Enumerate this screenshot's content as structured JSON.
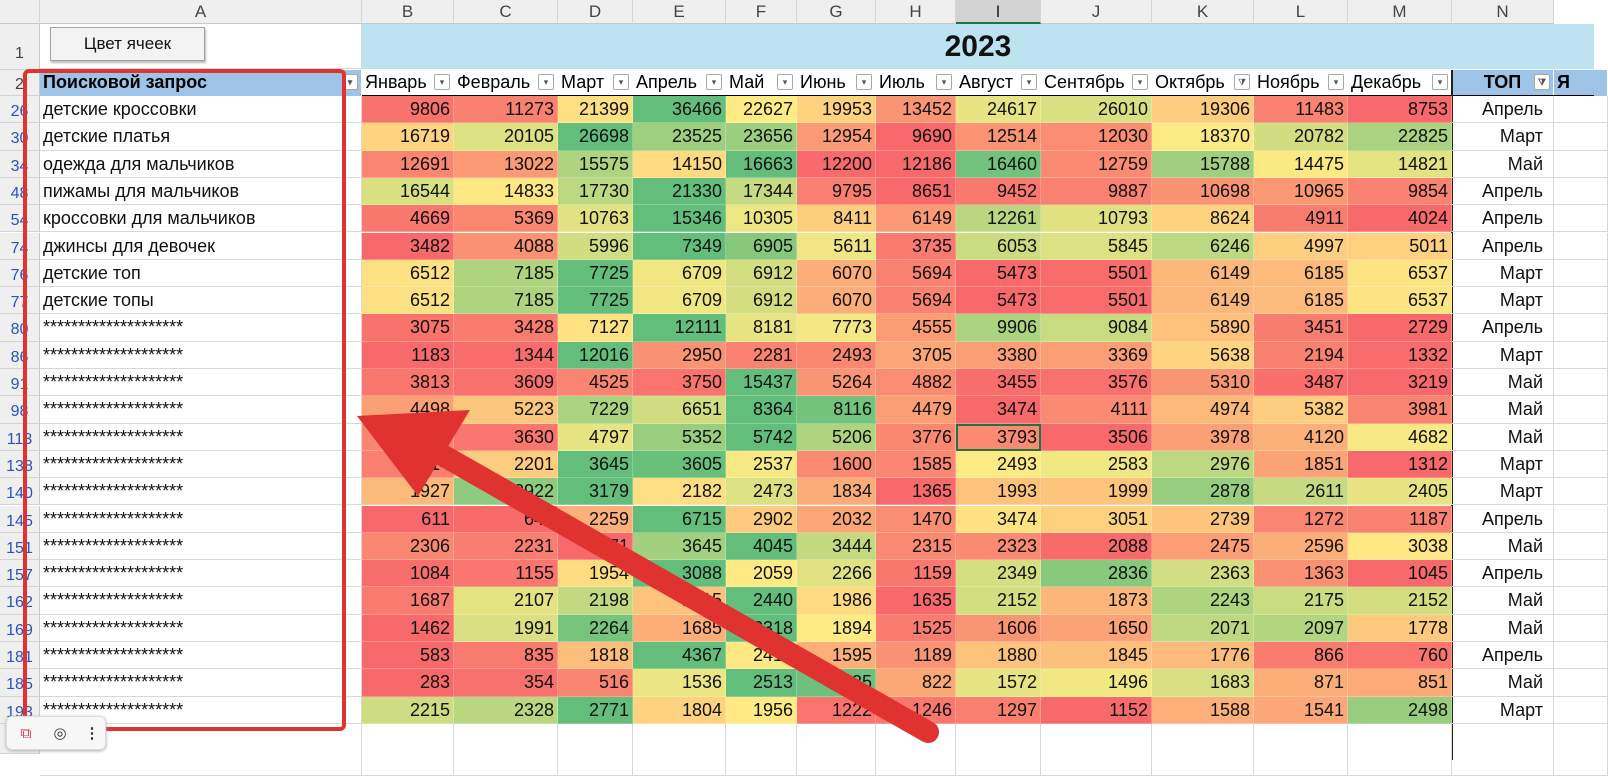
{
  "columns": [
    "A",
    "B",
    "C",
    "D",
    "E",
    "F",
    "G",
    "H",
    "I",
    "J",
    "K",
    "L",
    "M",
    "N"
  ],
  "selected_column": "I",
  "button": {
    "label": "Цвет ячеек"
  },
  "year": "2023",
  "header": {
    "query_label": "Поисковой запрос",
    "months": [
      "Январь",
      "Февраль",
      "Март",
      "Апрель",
      "Май",
      "Июнь",
      "Июль",
      "Август",
      "Сентябрь",
      "Октябрь",
      "Ноябрь",
      "Декабрь"
    ],
    "top_label": "ТОП",
    "extra_label": "Я"
  },
  "row_numbers_top": [
    "1",
    "2"
  ],
  "rows": [
    {
      "n": "26",
      "q": "детские кроссовки",
      "v": [
        9806,
        11273,
        21399,
        36466,
        22627,
        19953,
        13452,
        24617,
        26010,
        19306,
        11483,
        8753
      ],
      "top": "Апрель"
    },
    {
      "n": "30",
      "q": "детские платья",
      "v": [
        16719,
        20105,
        26698,
        23525,
        23656,
        12954,
        9690,
        12514,
        12030,
        18370,
        20782,
        22825
      ],
      "top": "Март"
    },
    {
      "n": "34",
      "q": "одежда для мальчиков",
      "v": [
        12691,
        13022,
        15575,
        14150,
        16663,
        12200,
        12186,
        16460,
        12759,
        15788,
        14475,
        14821
      ],
      "top": "Май"
    },
    {
      "n": "48",
      "q": "пижамы для мальчиков",
      "v": [
        16544,
        14833,
        17730,
        21330,
        17344,
        9795,
        8651,
        9452,
        9887,
        10698,
        10965,
        9854
      ],
      "top": "Апрель"
    },
    {
      "n": "54",
      "q": "кроссовки для мальчиков",
      "v": [
        4669,
        5369,
        10763,
        15346,
        10305,
        8411,
        6149,
        12261,
        10793,
        8624,
        4911,
        4024
      ],
      "top": "Апрель"
    },
    {
      "n": "74",
      "q": "джинсы для девочек",
      "v": [
        3482,
        4088,
        5996,
        7349,
        6905,
        5611,
        3735,
        6053,
        5845,
        6246,
        4997,
        5011
      ],
      "top": "Апрель"
    },
    {
      "n": "76",
      "q": "детские топ",
      "v": [
        6512,
        7185,
        7725,
        6709,
        6912,
        6070,
        5694,
        5473,
        5501,
        6149,
        6185,
        6537
      ],
      "top": "Март"
    },
    {
      "n": "77",
      "q": "детские топы",
      "v": [
        6512,
        7185,
        7725,
        6709,
        6912,
        6070,
        5694,
        5473,
        5501,
        6149,
        6185,
        6537
      ],
      "top": "Март"
    },
    {
      "n": "80",
      "q": "********************",
      "v": [
        3075,
        3428,
        7127,
        12111,
        8181,
        7773,
        4555,
        9906,
        9084,
        5890,
        3451,
        2729
      ],
      "top": "Апрель"
    },
    {
      "n": "86",
      "q": "********************",
      "v": [
        1183,
        1344,
        12016,
        2950,
        2281,
        2493,
        3705,
        3380,
        3369,
        5638,
        2194,
        1332
      ],
      "top": "Март"
    },
    {
      "n": "91",
      "q": "********************",
      "v": [
        3813,
        3609,
        4525,
        3750,
        15437,
        5264,
        4882,
        3455,
        3576,
        5310,
        3487,
        3219
      ],
      "top": "Май"
    },
    {
      "n": "98",
      "q": "********************",
      "v": [
        4498,
        5223,
        7229,
        6651,
        8364,
        8116,
        4479,
        3474,
        4111,
        4974,
        5382,
        3981
      ],
      "top": "Май"
    },
    {
      "n": "113",
      "q": "********************",
      "v": [
        3758,
        3630,
        4797,
        5352,
        5742,
        5206,
        3776,
        3793,
        3506,
        3978,
        4120,
        4682
      ],
      "top": "Май"
    },
    {
      "n": "138",
      "q": "********************",
      "v": [
        1514,
        2201,
        3645,
        3605,
        2537,
        1600,
        1585,
        2493,
        2583,
        2976,
        1851,
        1312
      ],
      "top": "Март"
    },
    {
      "n": "140",
      "q": "********************",
      "v": [
        1927,
        2922,
        3179,
        2182,
        2473,
        1834,
        1365,
        1993,
        1999,
        2878,
        2611,
        2405
      ],
      "top": "Март"
    },
    {
      "n": "145",
      "q": "********************",
      "v": [
        611,
        648,
        2259,
        6715,
        2902,
        2032,
        1470,
        3474,
        3051,
        2739,
        1272,
        1187
      ],
      "top": "Апрель"
    },
    {
      "n": "151",
      "q": "********************",
      "v": [
        2306,
        2231,
        2071,
        3645,
        4045,
        3444,
        2315,
        2323,
        2088,
        2475,
        2596,
        3038
      ],
      "top": "Май"
    },
    {
      "n": "157",
      "q": "********************",
      "v": [
        1084,
        1155,
        1954,
        3088,
        2059,
        2266,
        1159,
        2349,
        2836,
        2363,
        1363,
        1045
      ],
      "top": "Апрель"
    },
    {
      "n": "162",
      "q": "********************",
      "v": [
        1687,
        2107,
        2198,
        1915,
        2440,
        1986,
        1635,
        2152,
        1873,
        2243,
        2175,
        2152
      ],
      "top": "Май"
    },
    {
      "n": "169",
      "q": "********************",
      "v": [
        1462,
        1991,
        2264,
        1685,
        2318,
        1894,
        1525,
        1606,
        1650,
        2071,
        2097,
        1778
      ],
      "top": "Май"
    },
    {
      "n": "181",
      "q": "********************",
      "v": [
        583,
        835,
        1818,
        4367,
        2413,
        1595,
        1189,
        1880,
        1845,
        1776,
        866,
        760
      ],
      "top": "Апрель"
    },
    {
      "n": "185",
      "q": "********************",
      "v": [
        283,
        354,
        516,
        1536,
        2513,
        2435,
        822,
        1572,
        1496,
        1683,
        871,
        851
      ],
      "top": "Май"
    },
    {
      "n": "193",
      "q": "********************",
      "v": [
        2215,
        2328,
        2771,
        1804,
        1956,
        1222,
        1246,
        1297,
        1152,
        1588,
        1541,
        2498
      ],
      "top": "Март"
    }
  ],
  "bottom_row_number": "7",
  "active_cell": {
    "row_label": "113",
    "column": "I",
    "value": 3793
  },
  "colors": {
    "low": "#f8696b",
    "mid": "#ffeb84",
    "high": "#63be7b",
    "header_bg": "#9dc3e6",
    "year_bg": "#bde3f1"
  },
  "toolbar": {
    "icons": [
      "office-icon",
      "lens-icon",
      "more-icon"
    ]
  }
}
